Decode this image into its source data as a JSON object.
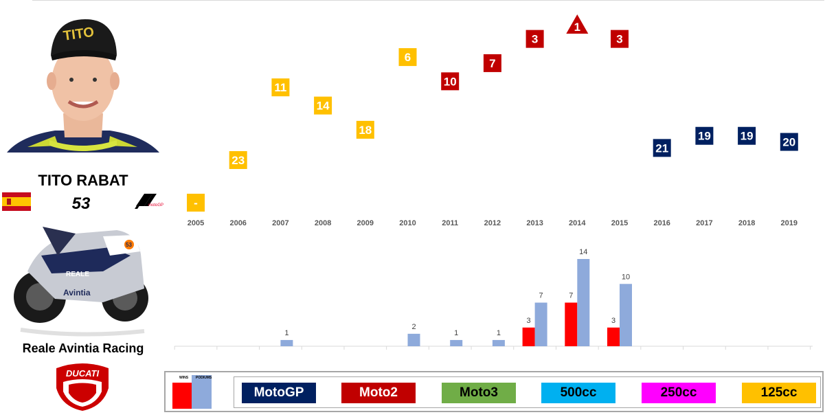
{
  "rider": {
    "name": "TITO RABAT",
    "number": "53",
    "team": "Reale Avintia Racing",
    "cap_text": "TITO",
    "ducati_text": "DUCATI",
    "motogp_logo_text": "motoGP",
    "bike_number": "53",
    "bike_sponsor": "Avintia",
    "bike_sponsor_2": "REALE"
  },
  "legend": {
    "wins_label": "WINS",
    "podiums_label": "PODIUMS",
    "classes": [
      {
        "label": "MotoGP",
        "bg": "#002060",
        "fg": "#ffffff"
      },
      {
        "label": "Moto2",
        "bg": "#c00000",
        "fg": "#ffffff"
      },
      {
        "label": "Moto3",
        "bg": "#70ad47",
        "fg": "#000000"
      },
      {
        "label": "500cc",
        "bg": "#00b0f0",
        "fg": "#000000"
      },
      {
        "label": "250cc",
        "bg": "#ff00ff",
        "fg": "#000000"
      },
      {
        "label": "125cc",
        "bg": "#ffc000",
        "fg": "#000000"
      }
    ]
  },
  "colors": {
    "MotoGP": "#002060",
    "Moto2": "#c00000",
    "125cc": "#ffc000",
    "wins": "#ff0000",
    "podiums": "#8eaadb"
  },
  "chart_data": [
    {
      "type": "scatter",
      "y_reversed": true,
      "y_range": [
        1,
        23
      ],
      "points": [
        {
          "year": "2005",
          "class": "125cc",
          "position": null,
          "label": "-"
        },
        {
          "year": "2006",
          "class": "125cc",
          "position": 23,
          "label": "23"
        },
        {
          "year": "2007",
          "class": "125cc",
          "position": 11,
          "label": "11"
        },
        {
          "year": "2008",
          "class": "125cc",
          "position": 14,
          "label": "14"
        },
        {
          "year": "2009",
          "class": "125cc",
          "position": 18,
          "label": "18"
        },
        {
          "year": "2010",
          "class": "125cc",
          "position": 6,
          "label": "6"
        },
        {
          "year": "2011",
          "class": "Moto2",
          "position": 10,
          "label": "10"
        },
        {
          "year": "2012",
          "class": "Moto2",
          "position": 7,
          "label": "7"
        },
        {
          "year": "2013",
          "class": "Moto2",
          "position": 3,
          "label": "3"
        },
        {
          "year": "2014",
          "class": "Moto2",
          "position": 1,
          "label": "1",
          "marker": "triangle"
        },
        {
          "year": "2015",
          "class": "Moto2",
          "position": 3,
          "label": "3"
        },
        {
          "year": "2016",
          "class": "MotoGP",
          "position": 21,
          "label": "21"
        },
        {
          "year": "2017",
          "class": "MotoGP",
          "position": 19,
          "label": "19"
        },
        {
          "year": "2018",
          "class": "MotoGP",
          "position": 19,
          "label": "19"
        },
        {
          "year": "2019",
          "class": "MotoGP",
          "position": 20,
          "label": "20"
        }
      ]
    },
    {
      "type": "bar",
      "categories": [
        "2005",
        "2006",
        "2007",
        "2008",
        "2009",
        "2010",
        "2011",
        "2012",
        "2013",
        "2014",
        "2015",
        "2016",
        "2017",
        "2018",
        "2019"
      ],
      "series": [
        {
          "name": "WINS",
          "values": [
            0,
            0,
            0,
            0,
            0,
            0,
            0,
            0,
            3,
            7,
            3,
            0,
            0,
            0,
            0
          ]
        },
        {
          "name": "PODIUMS",
          "values": [
            0,
            0,
            1,
            0,
            0,
            2,
            1,
            1,
            7,
            14,
            10,
            0,
            0,
            0,
            0
          ]
        }
      ],
      "ylim": [
        0,
        14
      ]
    }
  ]
}
